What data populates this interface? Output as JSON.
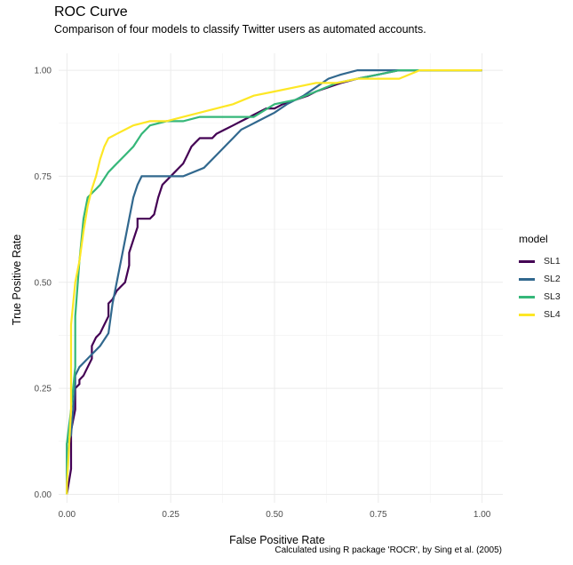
{
  "title": "ROC Curve",
  "subtitle": "Comparison of four models to classify Twitter users as automated accounts.",
  "caption": "Calculated using R package 'ROCR', by Sing et al. (2005)",
  "chart_data": {
    "type": "line",
    "xlabel": "False Positive Rate",
    "ylabel": "True Positive Rate",
    "xlim": [
      -0.02,
      1.05
    ],
    "ylim": [
      -0.02,
      1.04
    ],
    "xticks": [
      0.0,
      0.25,
      0.5,
      0.75,
      1.0
    ],
    "yticks": [
      0.0,
      0.25,
      0.5,
      0.75,
      1.0
    ],
    "xtick_labels": [
      "0.00",
      "0.25",
      "0.50",
      "0.75",
      "1.00"
    ],
    "ytick_labels": [
      "0.00",
      "0.25",
      "0.50",
      "0.75",
      "1.00"
    ],
    "grid": true,
    "legend_title": "model",
    "legend_position": "right",
    "series": [
      {
        "name": "SL1",
        "color": "#440154",
        "x": [
          0.0,
          0.01,
          0.01,
          0.02,
          0.02,
          0.03,
          0.03,
          0.04,
          0.05,
          0.06,
          0.06,
          0.07,
          0.08,
          0.09,
          0.1,
          0.1,
          0.11,
          0.12,
          0.13,
          0.14,
          0.15,
          0.15,
          0.16,
          0.17,
          0.17,
          0.18,
          0.19,
          0.2,
          0.21,
          0.22,
          0.23,
          0.24,
          0.25,
          0.26,
          0.27,
          0.28,
          0.29,
          0.3,
          0.31,
          0.32,
          0.33,
          0.34,
          0.35,
          0.36,
          0.38,
          0.4,
          0.42,
          0.44,
          0.46,
          0.48,
          0.5,
          0.52,
          0.55,
          0.58,
          0.6,
          0.63,
          0.66,
          0.7,
          0.75,
          0.8,
          0.85,
          0.86,
          1.0
        ],
        "y": [
          0.0,
          0.06,
          0.15,
          0.2,
          0.25,
          0.26,
          0.27,
          0.28,
          0.3,
          0.32,
          0.35,
          0.37,
          0.38,
          0.4,
          0.42,
          0.45,
          0.46,
          0.48,
          0.49,
          0.5,
          0.54,
          0.57,
          0.6,
          0.63,
          0.65,
          0.65,
          0.65,
          0.65,
          0.66,
          0.7,
          0.73,
          0.74,
          0.75,
          0.76,
          0.77,
          0.78,
          0.8,
          0.82,
          0.83,
          0.84,
          0.84,
          0.84,
          0.84,
          0.85,
          0.86,
          0.87,
          0.88,
          0.89,
          0.9,
          0.91,
          0.91,
          0.92,
          0.93,
          0.94,
          0.95,
          0.96,
          0.97,
          0.98,
          0.99,
          1.0,
          1.0,
          1.0,
          1.0
        ]
      },
      {
        "name": "SL2",
        "color": "#31688e",
        "x": [
          0.0,
          0.0,
          0.01,
          0.02,
          0.02,
          0.03,
          0.04,
          0.06,
          0.08,
          0.1,
          0.11,
          0.12,
          0.13,
          0.14,
          0.15,
          0.16,
          0.17,
          0.18,
          0.2,
          0.24,
          0.28,
          0.33,
          0.36,
          0.4,
          0.42,
          0.44,
          0.46,
          0.5,
          0.53,
          0.57,
          0.6,
          0.63,
          0.66,
          0.7,
          0.75,
          0.8,
          0.85,
          1.0
        ],
        "y": [
          0.0,
          0.12,
          0.14,
          0.26,
          0.28,
          0.3,
          0.31,
          0.33,
          0.35,
          0.38,
          0.45,
          0.5,
          0.55,
          0.6,
          0.65,
          0.7,
          0.73,
          0.75,
          0.75,
          0.75,
          0.75,
          0.77,
          0.8,
          0.84,
          0.86,
          0.87,
          0.88,
          0.9,
          0.92,
          0.94,
          0.96,
          0.98,
          0.99,
          1.0,
          1.0,
          1.0,
          1.0,
          1.0
        ]
      },
      {
        "name": "SL3",
        "color": "#35b779",
        "x": [
          0.0,
          0.0,
          0.01,
          0.02,
          0.02,
          0.03,
          0.04,
          0.05,
          0.06,
          0.07,
          0.08,
          0.1,
          0.12,
          0.14,
          0.16,
          0.18,
          0.2,
          0.24,
          0.28,
          0.32,
          0.36,
          0.4,
          0.45,
          0.5,
          0.55,
          0.6,
          0.65,
          0.7,
          0.75,
          0.8,
          0.85,
          1.0
        ],
        "y": [
          0.0,
          0.12,
          0.2,
          0.3,
          0.42,
          0.55,
          0.65,
          0.7,
          0.71,
          0.72,
          0.73,
          0.76,
          0.78,
          0.8,
          0.82,
          0.85,
          0.87,
          0.88,
          0.88,
          0.89,
          0.89,
          0.89,
          0.89,
          0.92,
          0.93,
          0.95,
          0.97,
          0.98,
          0.99,
          1.0,
          1.0,
          1.0
        ]
      },
      {
        "name": "SL4",
        "color": "#fde725",
        "x": [
          0.0,
          0.0,
          0.01,
          0.01,
          0.02,
          0.03,
          0.04,
          0.05,
          0.06,
          0.07,
          0.08,
          0.09,
          0.1,
          0.12,
          0.14,
          0.16,
          0.2,
          0.24,
          0.28,
          0.32,
          0.36,
          0.4,
          0.45,
          0.5,
          0.55,
          0.6,
          0.65,
          0.7,
          0.75,
          0.8,
          0.85,
          0.9,
          1.0
        ],
        "y": [
          0.0,
          0.02,
          0.2,
          0.4,
          0.5,
          0.55,
          0.62,
          0.68,
          0.72,
          0.75,
          0.79,
          0.82,
          0.84,
          0.85,
          0.86,
          0.87,
          0.88,
          0.88,
          0.89,
          0.9,
          0.91,
          0.92,
          0.94,
          0.95,
          0.96,
          0.97,
          0.97,
          0.98,
          0.98,
          0.98,
          1.0,
          1.0,
          1.0
        ]
      }
    ]
  }
}
